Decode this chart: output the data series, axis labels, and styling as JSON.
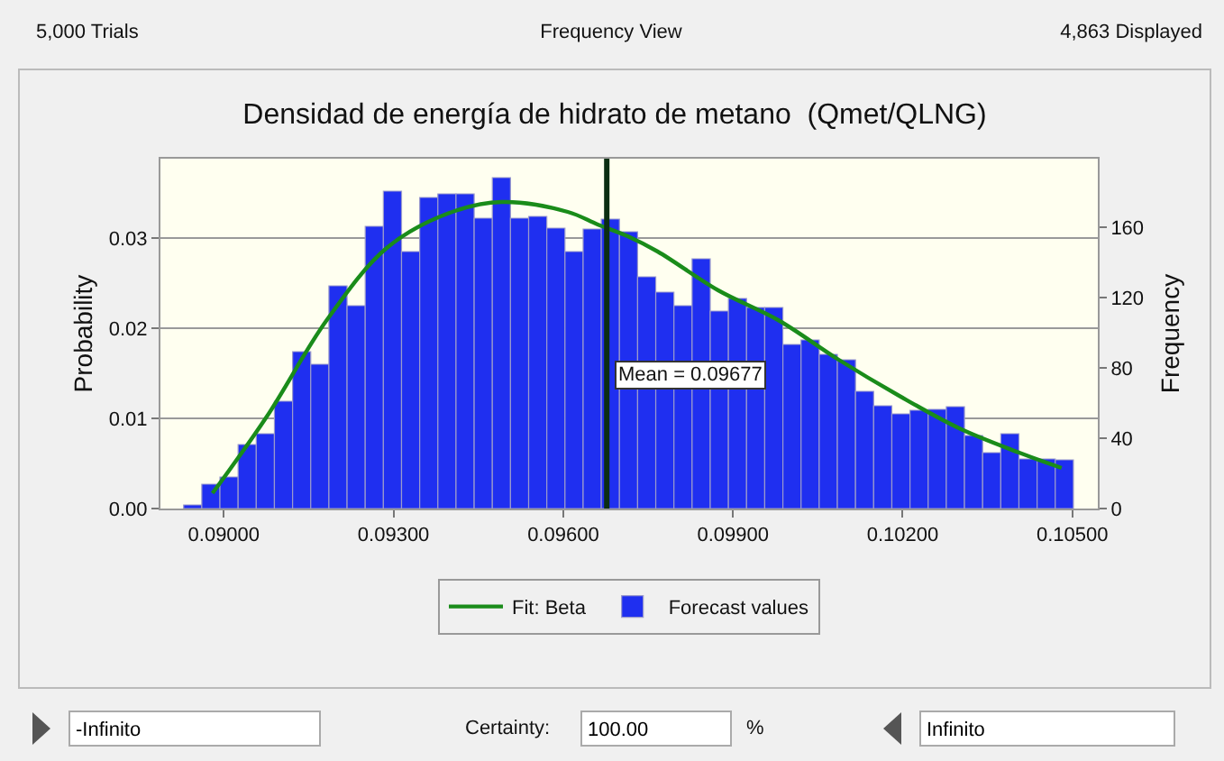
{
  "chart_data": {
    "type": "histogram",
    "title": "Densidad de energía de hidrato de metano  (Qmet/QLNG)",
    "ylabel": "Probability",
    "y2label": "Frequency",
    "annotations": [
      "5,000 Trials",
      "Frequency View",
      "4,863 Displayed",
      "-Infinito",
      "Certainty:",
      "100.00",
      "%",
      "Infinito"
    ],
    "bins": [
      0.08929,
      0.089611,
      0.089932,
      0.090253,
      0.090574,
      0.090895,
      0.091216,
      0.091537,
      0.091858,
      0.092179,
      0.0925,
      0.092821,
      0.093142,
      0.093463,
      0.093784,
      0.094105,
      0.094426,
      0.094747,
      0.095068,
      0.095389,
      0.09571,
      0.096031,
      0.096352,
      0.096673,
      0.096994,
      0.097315,
      0.097636,
      0.097957,
      0.098278,
      0.098599,
      0.09892,
      0.099241,
      0.099562,
      0.099883,
      0.100204,
      0.100525,
      0.100846,
      0.101167,
      0.101488,
      0.101809,
      0.10213,
      0.102451,
      0.102772,
      0.103093,
      0.103414,
      0.103735,
      0.104056,
      0.104377,
      0.104698,
      0.105019
    ],
    "series": [
      {
        "name": "Fit: Beta",
        "type": "line",
        "color": "#1a8c1a",
        "x": [
          0.0898,
          0.09076,
          0.09182,
          0.09288,
          0.09395,
          0.09491,
          0.09608,
          0.09661,
          0.09714,
          0.09767,
          0.09874,
          0.0998,
          0.10087,
          0.10194,
          0.103,
          0.10406,
          0.10481
        ],
        "values": [
          0.0017,
          0.0102,
          0.0209,
          0.0289,
          0.0327,
          0.034,
          0.0329,
          0.0315,
          0.0302,
          0.0285,
          0.0242,
          0.0209,
          0.0165,
          0.0125,
          0.0089,
          0.0062,
          0.0045
        ]
      },
      {
        "name": "Forecast values",
        "color": "#1f2ff0",
        "values": [
          0.0004,
          0.0027,
          0.0035,
          0.0071,
          0.0083,
          0.0119,
          0.0174,
          0.016,
          0.0247,
          0.0225,
          0.0313,
          0.0352,
          0.0285,
          0.0345,
          0.0349,
          0.0349,
          0.0322,
          0.0367,
          0.0322,
          0.0324,
          0.0311,
          0.0285,
          0.031,
          0.0321,
          0.0307,
          0.0257,
          0.024,
          0.0225,
          0.0277,
          0.0219,
          0.0233,
          0.0223,
          0.0223,
          0.0182,
          0.0187,
          0.0171,
          0.0165,
          0.013,
          0.0114,
          0.0105,
          0.0109,
          0.011,
          0.0113,
          0.0081,
          0.0062,
          0.0083,
          0.0055,
          0.0055,
          0.0054
        ]
      }
    ],
    "xlim": [
      0.08888,
      0.10545
    ],
    "xticks": [
      {
        "value": 0.09,
        "label": "0.09000"
      },
      {
        "value": 0.093,
        "label": "0.09300"
      },
      {
        "value": 0.096,
        "label": "0.09600"
      },
      {
        "value": 0.099,
        "label": "0.09900"
      },
      {
        "value": 0.102,
        "label": "0.10200"
      },
      {
        "value": 0.105,
        "label": "0.10500"
      }
    ],
    "ylim": [
      0,
      0.0388
    ],
    "yticks": [
      {
        "value": 0,
        "label": "0.00"
      },
      {
        "value": 0.01,
        "label": "0.01"
      },
      {
        "value": 0.02,
        "label": "0.02"
      },
      {
        "value": 0.03,
        "label": "0.03"
      }
    ],
    "y2lim": [
      0,
      199
    ],
    "y2ticks": [
      0,
      40,
      80,
      120,
      160
    ],
    "ref_lines": [
      {
        "axis": "x",
        "value": 0.09677,
        "label": "Mean = 0.09677",
        "color": "#0b2e12"
      }
    ],
    "grid": "y",
    "legend": "bottom",
    "marker": "none",
    "line_style": "solid"
  }
}
